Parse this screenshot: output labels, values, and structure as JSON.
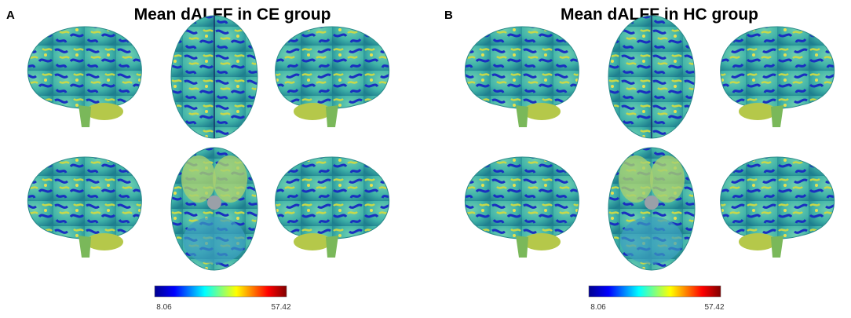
{
  "panels": [
    {
      "label": "A",
      "title": "Mean dALFF in CE group",
      "colorbar": {
        "min": "8.06",
        "max": "57.42"
      }
    },
    {
      "label": "B",
      "title": "Mean dALFF in HC group",
      "colorbar": {
        "min": "8.06",
        "max": "57.42"
      }
    }
  ]
}
